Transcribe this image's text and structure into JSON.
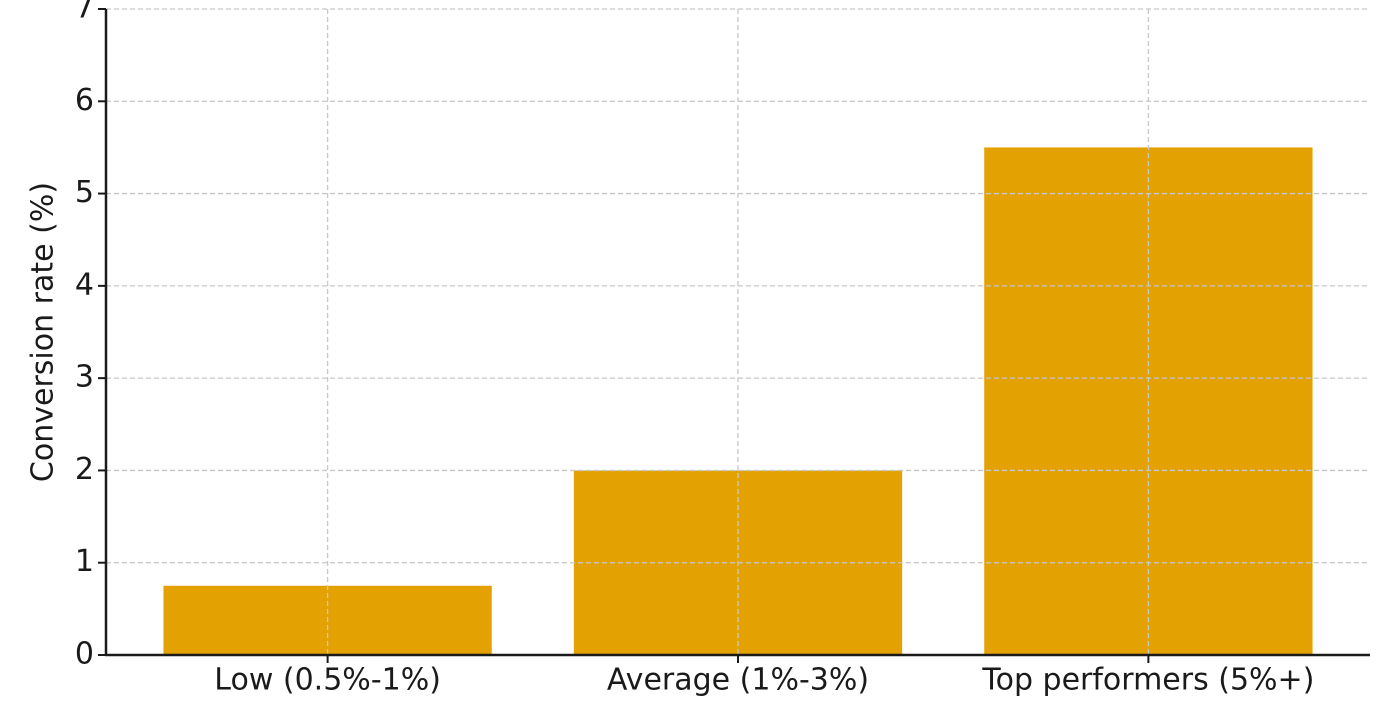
{
  "chart_data": {
    "type": "bar",
    "y_label": "Conversion rate (%)",
    "categories": [
      "Low (0.5%-1%)",
      "Average (1%-3%)",
      "Top performers (5%+)"
    ],
    "values": [
      0.75,
      2.0,
      5.5
    ],
    "color": "#e3a102",
    "ylim": [
      0,
      7
    ],
    "yticks": [
      0,
      1,
      2,
      3,
      4,
      5,
      6,
      7
    ],
    "grid": true
  }
}
